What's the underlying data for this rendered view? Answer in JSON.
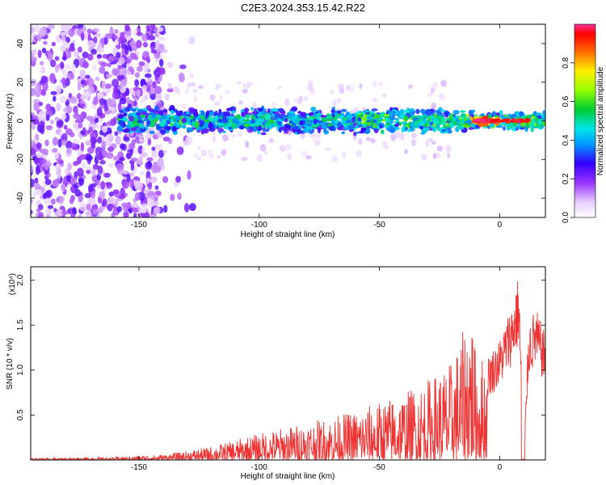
{
  "title": "C2E3.2024.353.15.42.R22",
  "chart_data": [
    {
      "type": "heatmap",
      "xlabel": "Height of straight line (km)",
      "ylabel": "Frequency (Hz)",
      "xlim": [
        -195,
        19
      ],
      "ylim": [
        -50,
        50
      ],
      "xticks": [
        -150,
        -100,
        -50,
        0
      ],
      "yticks": [
        -40,
        -20,
        0,
        20,
        40
      ],
      "colorbar": {
        "label": "Normalized spectral amplitude",
        "range": [
          0,
          1
        ],
        "ticks": [
          0.0,
          0.2,
          0.4,
          0.6,
          0.8
        ],
        "tick_labels": [
          "0.0",
          "0.2",
          "0.4",
          "0.6",
          "0.8"
        ]
      },
      "description_values": {
        "noise_region_x": [
          -195,
          -140
        ],
        "signal_band_center_hz": 0,
        "signal_band_halfwidth_hz": 5,
        "peak_amplitude_x": [
          -10,
          12
        ],
        "peak_amplitude": 1.0
      }
    },
    {
      "type": "line",
      "xlabel": "Height of straight line (km)",
      "ylabel": "SNR (10 * v/v)",
      "y_multiplier_label": "(x10⁴)",
      "xlim": [
        -195,
        19
      ],
      "ylim": [
        0,
        2.15
      ],
      "xticks": [
        -150,
        -100,
        -50,
        0
      ],
      "yticks": [
        0.5,
        1.0,
        1.5,
        2.0
      ],
      "ytick_labels": [
        "0.5",
        "1.0",
        "1.5",
        "2.0"
      ],
      "color": "#ee3333",
      "envelope": {
        "x": [
          -195,
          -160,
          -140,
          -130,
          -120,
          -110,
          -100,
          -90,
          -80,
          -70,
          -60,
          -50,
          -40,
          -30,
          -20,
          -15,
          -12,
          -10,
          -5,
          0,
          5,
          8,
          10,
          12,
          15,
          19
        ],
        "y": [
          0.02,
          0.03,
          0.06,
          0.1,
          0.15,
          0.22,
          0.3,
          0.36,
          0.42,
          0.48,
          0.55,
          0.65,
          0.75,
          0.9,
          1.1,
          1.45,
          1.85,
          1.2,
          1.15,
          1.35,
          1.75,
          2.1,
          0.0,
          1.55,
          1.7,
          1.4
        ]
      }
    }
  ]
}
